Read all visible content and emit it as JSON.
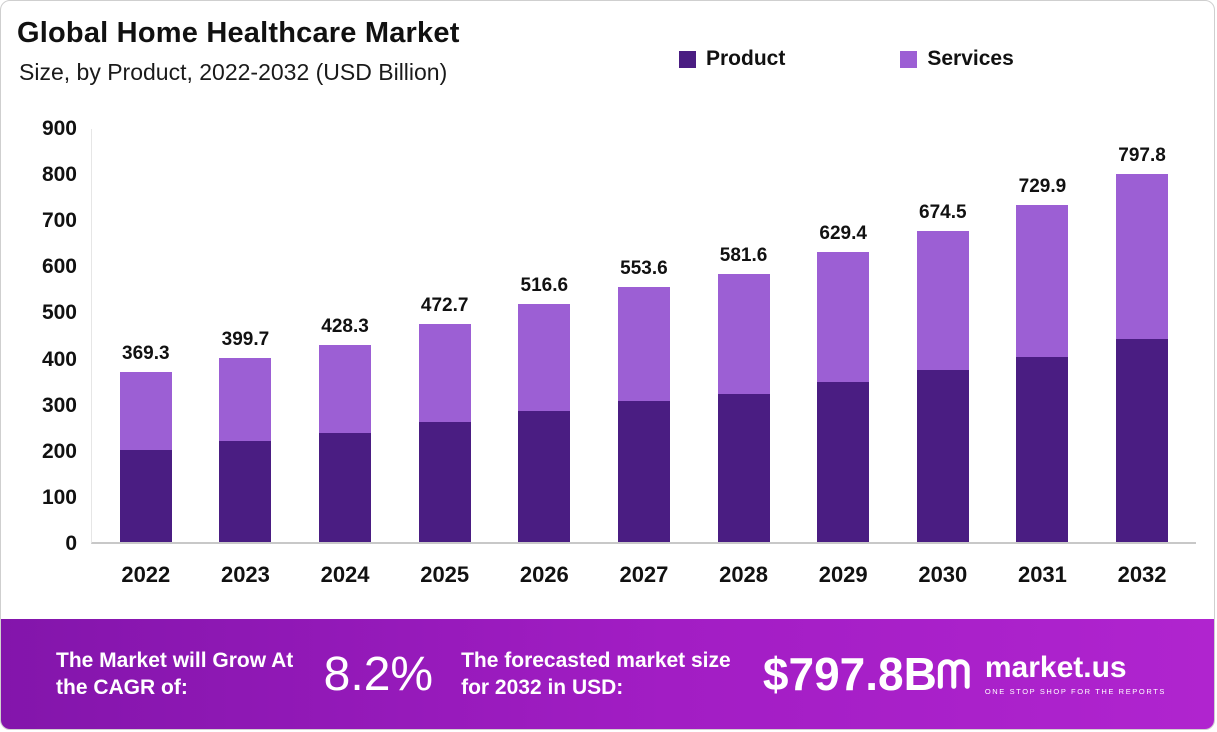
{
  "header": {
    "title": "Global Home Healthcare Market",
    "subtitle": "Size, by Product, 2022-2032 (USD Billion)"
  },
  "legend": [
    {
      "label": "Product",
      "color": "#4a1d82"
    },
    {
      "label": "Services",
      "color": "#9c5fd4"
    }
  ],
  "chart_data": {
    "type": "bar",
    "stacked": true,
    "title": "Global Home Healthcare Market Size, by Product, 2022-2032 (USD Billion)",
    "categories": [
      "2022",
      "2023",
      "2024",
      "2025",
      "2026",
      "2027",
      "2028",
      "2029",
      "2030",
      "2031",
      "2032"
    ],
    "series": [
      {
        "name": "Product",
        "color": "#4a1d82",
        "values": [
          200.0,
          218.0,
          236.0,
          260.0,
          284.0,
          306.0,
          322.0,
          348.0,
          374.0,
          402.0,
          440.0
        ]
      },
      {
        "name": "Services",
        "color": "#9c5fd4",
        "values": [
          169.3,
          181.7,
          192.3,
          212.7,
          232.6,
          247.6,
          259.6,
          281.4,
          300.5,
          327.9,
          357.8
        ]
      }
    ],
    "totals": [
      369.3,
      399.7,
      428.3,
      472.7,
      516.6,
      553.6,
      581.6,
      629.4,
      674.5,
      729.9,
      797.8
    ],
    "xlabel": "",
    "ylabel": "USD Billion",
    "ylim": [
      0,
      900
    ],
    "yticks": [
      0,
      100,
      200,
      300,
      400,
      500,
      600,
      700,
      800,
      900
    ],
    "grid": false,
    "legend_position": "top"
  },
  "banner": {
    "cagr_label": "The Market will Grow At the CAGR of:",
    "cagr_value": "8.2%",
    "forecast_label": "The forecasted market size for 2032 in USD:",
    "forecast_value": "$797.8B",
    "brand_name": "market.us",
    "brand_tagline": "ONE STOP SHOP FOR THE REPORTS"
  }
}
